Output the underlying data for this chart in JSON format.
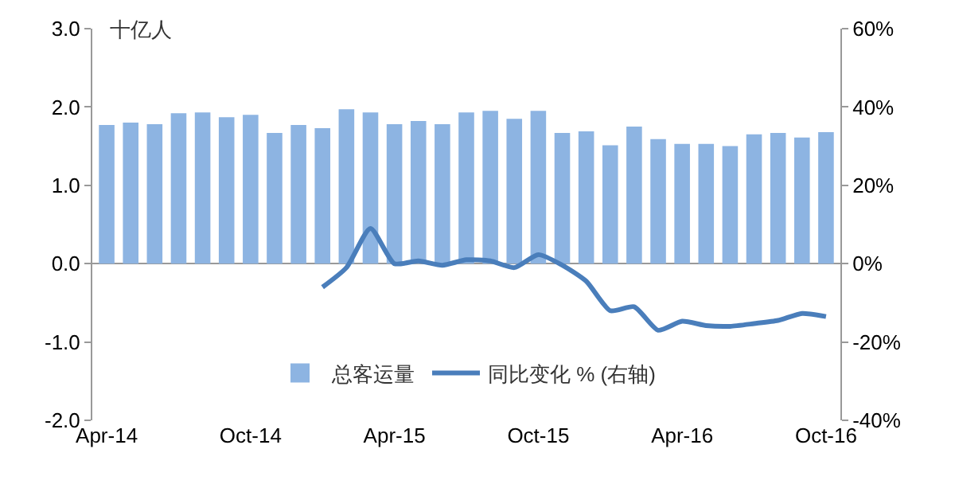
{
  "chart_data": {
    "type": "bar",
    "categories": [
      "Apr-14",
      null,
      null,
      null,
      null,
      null,
      "Oct-14",
      null,
      null,
      null,
      null,
      null,
      "Apr-15",
      null,
      null,
      null,
      null,
      null,
      "Oct-15",
      null,
      null,
      null,
      null,
      null,
      "Apr-16",
      null,
      null,
      null,
      null,
      null,
      "Oct-16"
    ],
    "series": [
      {
        "name": "总客运量",
        "color": "#8db4e2",
        "values": [
          1.77,
          1.8,
          1.78,
          1.92,
          1.93,
          1.87,
          1.9,
          1.67,
          1.77,
          1.73,
          1.97,
          1.93,
          1.78,
          1.82,
          1.78,
          1.93,
          1.95,
          1.85,
          1.95,
          1.67,
          1.69,
          1.51,
          1.75,
          1.59,
          1.53,
          1.53,
          1.5,
          1.65,
          1.67,
          1.61,
          1.68
        ]
      },
      {
        "name": "同比变化 % (右轴)",
        "type": "line",
        "axis": "y2",
        "color": "#4a7ebb",
        "values": [
          null,
          null,
          null,
          null,
          null,
          null,
          null,
          null,
          null,
          -6,
          -1,
          9,
          0,
          0.7,
          -0.4,
          1,
          0.7,
          -1,
          2.3,
          -0.4,
          -4.5,
          -12,
          -11,
          -17,
          -14.7,
          -15.8,
          -16,
          -15.3,
          -14.5,
          -12.7,
          -13.5
        ]
      }
    ],
    "ylim": [
      -2,
      3
    ],
    "yticks": [
      {
        "value": -2,
        "label": "-2.0"
      },
      {
        "value": -1,
        "label": "-1.0"
      },
      {
        "value": 0,
        "label": "0.0"
      },
      {
        "value": 1,
        "label": "1.0"
      },
      {
        "value": 2,
        "label": "2.0"
      },
      {
        "value": 3,
        "label": "3.0"
      }
    ],
    "y2lim": [
      -40,
      60
    ],
    "y2ticks": [
      {
        "value": -40,
        "label": "-40%"
      },
      {
        "value": -20,
        "label": "-20%"
      },
      {
        "value": 0,
        "label": "0%"
      },
      {
        "value": 20,
        "label": "20%"
      },
      {
        "value": 40,
        "label": "40%"
      },
      {
        "value": 60,
        "label": "60%"
      }
    ],
    "annotations": [
      "十亿人"
    ],
    "legend": "bottom",
    "marker": "none",
    "line_style": "solid"
  }
}
